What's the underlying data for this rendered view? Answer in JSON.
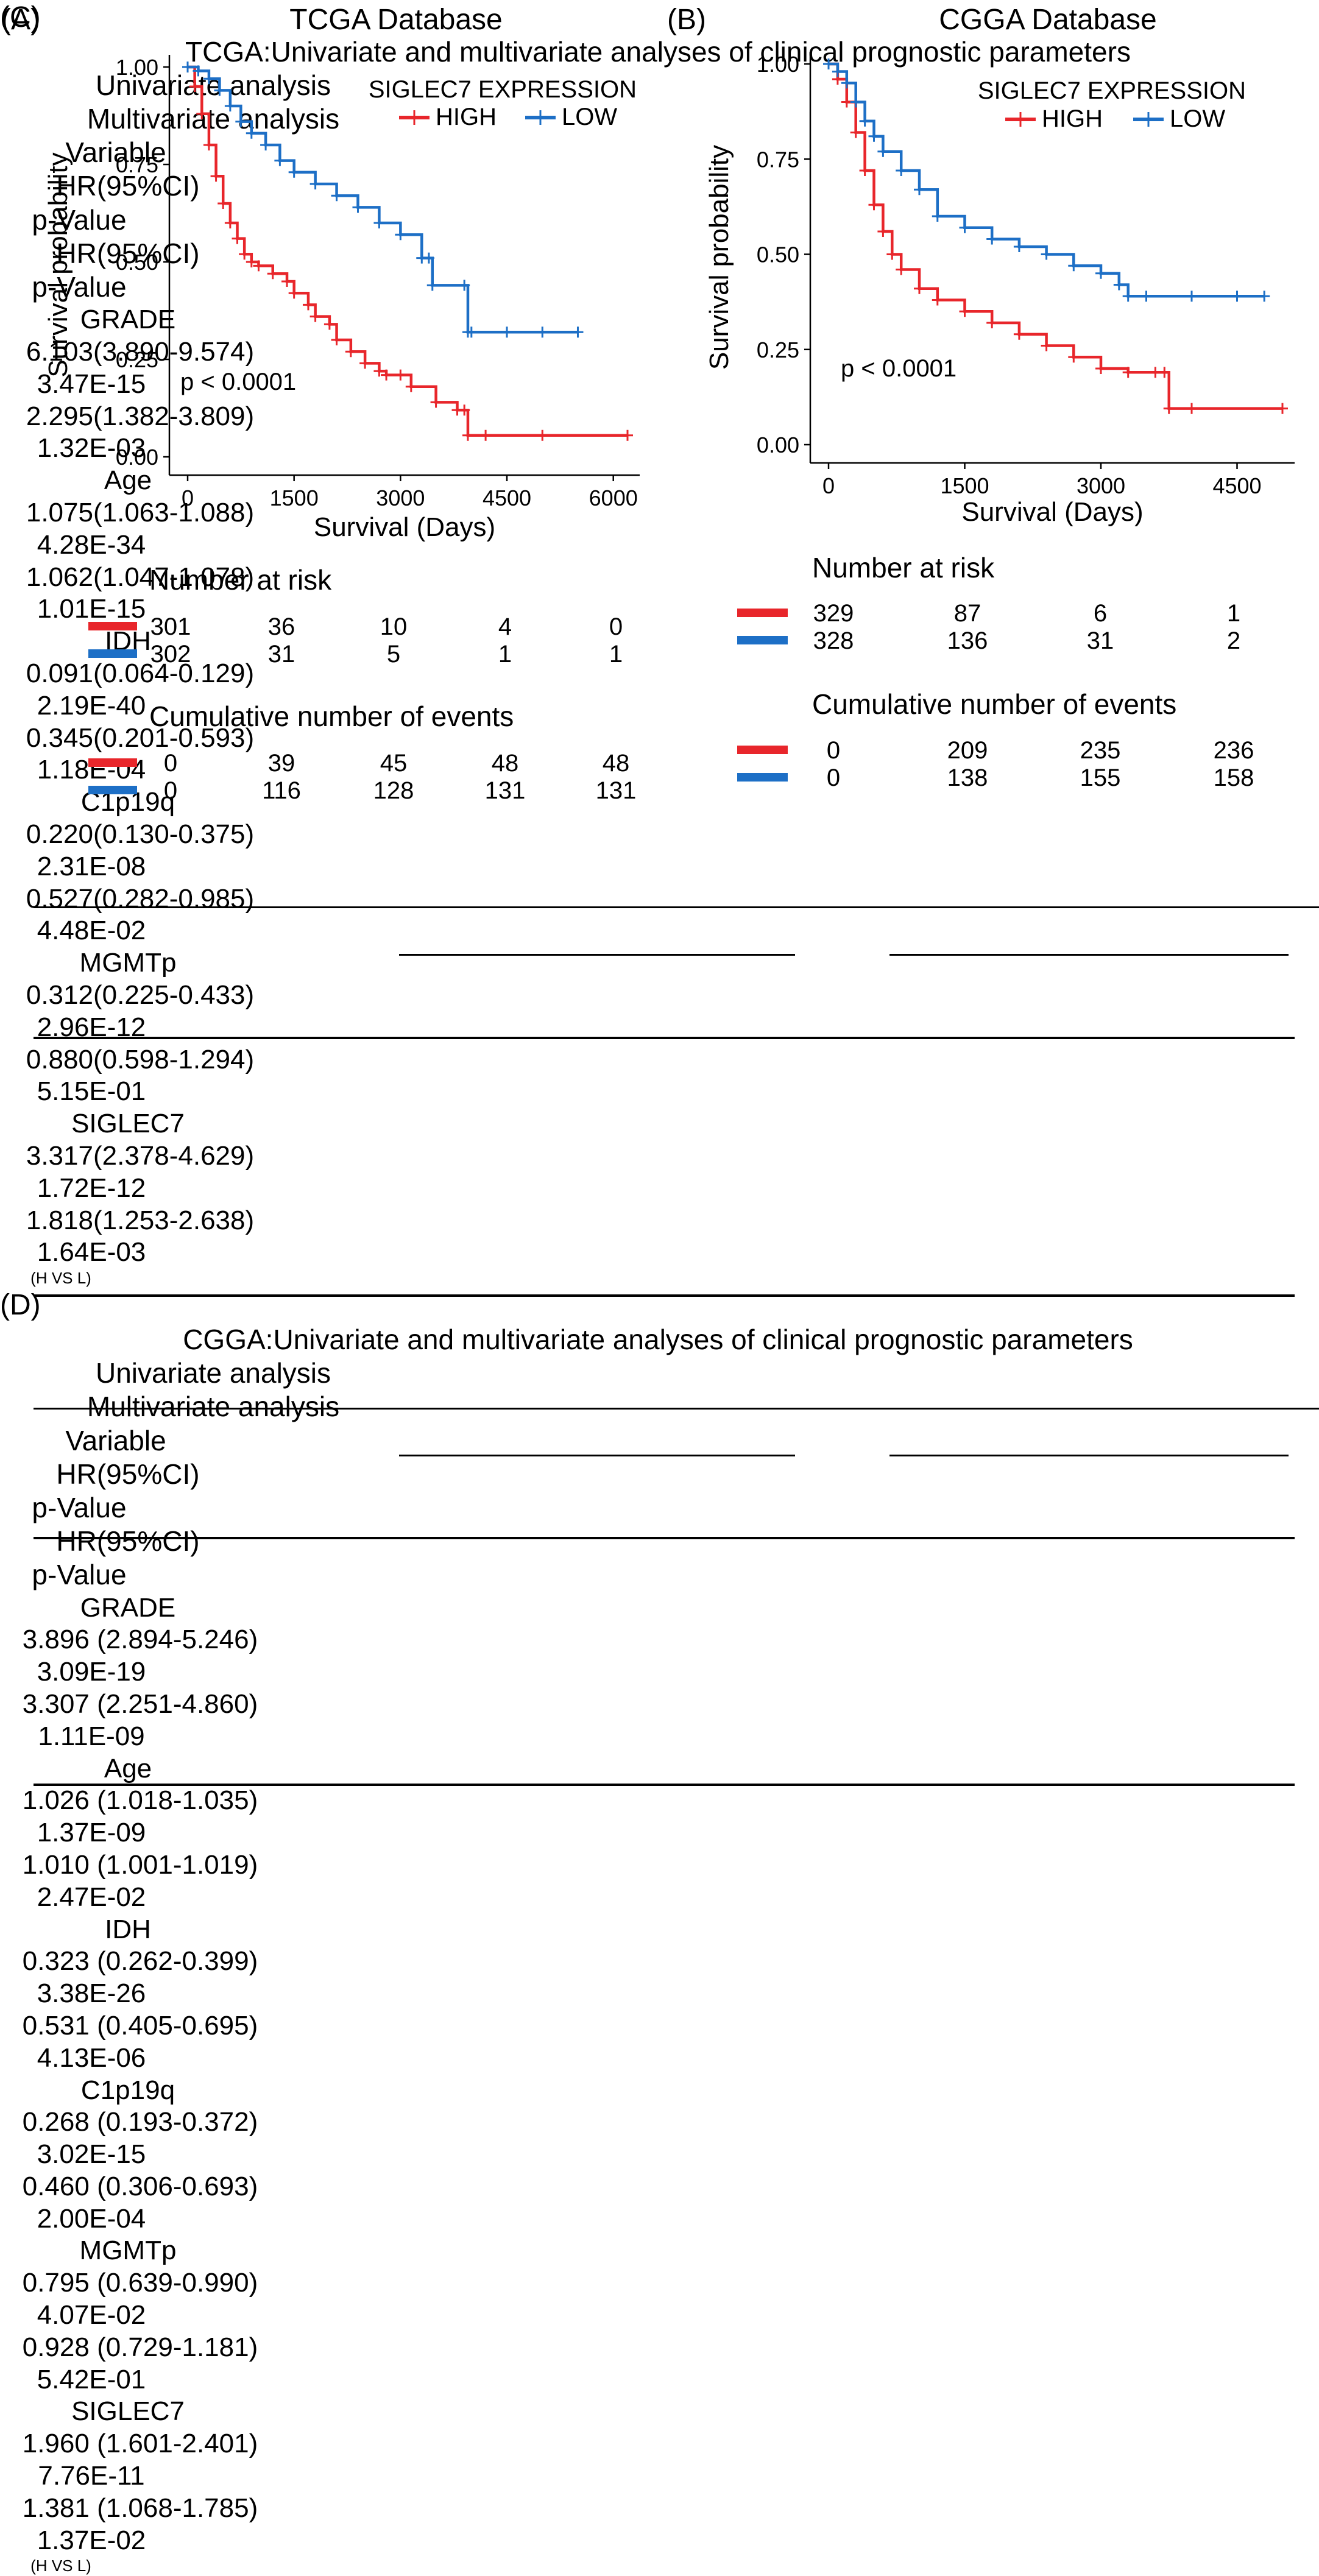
{
  "chart_data": [
    {
      "type": "line",
      "panel_label": "(A)",
      "title": "TCGA Database",
      "xlabel": "Survival (Days)",
      "ylabel": "Survival probability",
      "xlim": [
        0,
        6200
      ],
      "ylim": [
        0,
        1
      ],
      "x_ticks": [
        0,
        1500,
        3000,
        4500,
        6000
      ],
      "x_tick_labels": [
        "0",
        "1500",
        "3000",
        "4500",
        "6000"
      ],
      "y_ticks": [
        0,
        0.25,
        0.5,
        0.75,
        1.0
      ],
      "y_tick_labels": [
        "0.00",
        "0.25",
        "0.50",
        "0.75",
        "1.00"
      ],
      "legend_title": "SIGLEC7 EXPRESSION",
      "legend_position": "top-right",
      "annotation": "p < 0.0001",
      "series": [
        {
          "name": "HIGH",
          "color": "#e8262b",
          "x": [
            0,
            100,
            200,
            300,
            400,
            500,
            600,
            700,
            800,
            900,
            1000,
            1200,
            1400,
            1500,
            1700,
            1800,
            2000,
            2100,
            2300,
            2500,
            2700,
            2800,
            3000,
            3150,
            3500,
            3800,
            3900,
            3950,
            4200,
            5000,
            6200
          ],
          "y": [
            1.0,
            0.95,
            0.88,
            0.8,
            0.72,
            0.65,
            0.6,
            0.56,
            0.52,
            0.5,
            0.49,
            0.47,
            0.45,
            0.42,
            0.39,
            0.36,
            0.34,
            0.3,
            0.27,
            0.24,
            0.22,
            0.21,
            0.21,
            0.18,
            0.14,
            0.12,
            0.12,
            0.055,
            0.055,
            0.055,
            0.055
          ]
        },
        {
          "name": "LOW",
          "color": "#1d6fc6",
          "x": [
            0,
            150,
            300,
            450,
            600,
            750,
            900,
            1100,
            1300,
            1500,
            1800,
            2100,
            2400,
            2700,
            3000,
            3300,
            3400,
            3450,
            3900,
            3950,
            4000,
            4500,
            5000,
            5500
          ],
          "y": [
            1.0,
            0.99,
            0.97,
            0.94,
            0.9,
            0.86,
            0.83,
            0.8,
            0.76,
            0.73,
            0.7,
            0.67,
            0.64,
            0.6,
            0.57,
            0.51,
            0.51,
            0.44,
            0.44,
            0.32,
            0.32,
            0.32,
            0.32,
            0.32
          ]
        }
      ],
      "risk_table_title": "Number at risk",
      "risk_table": [
        {
          "name": "HIGH",
          "values": [
            "301",
            "36",
            "10",
            "4",
            "0"
          ]
        },
        {
          "name": "LOW",
          "values": [
            "302",
            "31",
            "5",
            "1",
            "1"
          ]
        }
      ],
      "events_table_title": "Cumulative number of events",
      "events_table": [
        {
          "name": "HIGH",
          "values": [
            "0",
            "39",
            "45",
            "48",
            "48"
          ]
        },
        {
          "name": "LOW",
          "values": [
            "0",
            "116",
            "128",
            "131",
            "131"
          ]
        }
      ]
    },
    {
      "type": "line",
      "panel_label": "(B)",
      "title": "CGGA Database",
      "xlabel": "Survival (Days)",
      "ylabel": "Survival probability",
      "xlim": [
        0,
        5000
      ],
      "ylim": [
        0,
        1
      ],
      "x_ticks": [
        0,
        1500,
        3000,
        4500
      ],
      "x_tick_labels": [
        "0",
        "1500",
        "3000",
        "4500"
      ],
      "y_ticks": [
        0,
        0.25,
        0.5,
        0.75,
        1.0
      ],
      "y_tick_labels": [
        "0.00",
        "0.25",
        "0.50",
        "0.75",
        "1.00"
      ],
      "legend_title": "SIGLEC7 EXPRESSION",
      "legend_position": "top-right",
      "annotation": "p < 0.0001",
      "series": [
        {
          "name": "HIGH",
          "color": "#e8262b",
          "x": [
            0,
            100,
            200,
            300,
            400,
            500,
            600,
            700,
            800,
            1000,
            1200,
            1500,
            1800,
            2100,
            2400,
            2700,
            3000,
            3300,
            3600,
            3700,
            3750,
            4000,
            5000
          ],
          "y": [
            1.0,
            0.96,
            0.9,
            0.82,
            0.72,
            0.63,
            0.56,
            0.5,
            0.46,
            0.41,
            0.38,
            0.35,
            0.32,
            0.29,
            0.26,
            0.23,
            0.2,
            0.19,
            0.19,
            0.19,
            0.095,
            0.095,
            0.095
          ]
        },
        {
          "name": "LOW",
          "color": "#1d6fc6",
          "x": [
            0,
            100,
            200,
            300,
            400,
            500,
            600,
            800,
            1000,
            1200,
            1500,
            1800,
            2100,
            2400,
            2700,
            3000,
            3200,
            3300,
            3500,
            4000,
            4500,
            4800
          ],
          "y": [
            1.0,
            0.98,
            0.95,
            0.9,
            0.85,
            0.81,
            0.77,
            0.72,
            0.67,
            0.6,
            0.57,
            0.54,
            0.52,
            0.5,
            0.47,
            0.45,
            0.42,
            0.39,
            0.39,
            0.39,
            0.39,
            0.39
          ]
        }
      ],
      "risk_table_title": "Number at risk",
      "risk_table": [
        {
          "name": "HIGH",
          "values": [
            "329",
            "87",
            "6",
            "1"
          ]
        },
        {
          "name": "LOW",
          "values": [
            "328",
            "136",
            "31",
            "2"
          ]
        }
      ],
      "events_table_title": "Cumulative number of events",
      "events_table": [
        {
          "name": "HIGH",
          "values": [
            "0",
            "209",
            "235",
            "236"
          ]
        },
        {
          "name": "LOW",
          "values": [
            "0",
            "138",
            "155",
            "158"
          ]
        }
      ]
    },
    {
      "type": "table",
      "panel_label": "(C)",
      "title": "TCGA:Univariate and multivariate analyses of clinical prognostic parameters",
      "group_headers": [
        "Univariate analysis",
        "Multivariate analysis"
      ],
      "columns": [
        "Variable",
        "HR(95%CI)",
        "p-Value",
        "HR(95%CI)",
        "p-Value"
      ],
      "rows": [
        [
          "GRADE",
          "6.103(3.890-9.574)",
          "3.47E-15",
          "2.295(1.382-3.809)",
          "1.32E-03"
        ],
        [
          "Age",
          "1.075(1.063-1.088)",
          "4.28E-34",
          "1.062(1.047-1.078)",
          "1.01E-15"
        ],
        [
          "IDH",
          "0.091(0.064-0.129)",
          "2.19E-40",
          "0.345(0.201-0.593)",
          "1.18E-04"
        ],
        [
          "C1p19q",
          "0.220(0.130-0.375)",
          "2.31E-08",
          "0.527(0.282-0.985)",
          "4.48E-02"
        ],
        [
          "MGMTp",
          "0.312(0.225-0.433)",
          "2.96E-12",
          "0.880(0.598-1.294)",
          "5.15E-01"
        ],
        [
          "SIGLEC7",
          "3.317(2.378-4.629)",
          "1.72E-12",
          "1.818(1.253-2.638)",
          "1.64E-03"
        ]
      ],
      "footnote": "(H VS L)"
    },
    {
      "type": "table",
      "panel_label": "(D)",
      "title": "CGGA:Univariate and multivariate analyses of clinical prognostic parameters",
      "group_headers": [
        "Univariate analysis",
        "Multivariate analysis"
      ],
      "columns": [
        "Variable",
        "HR(95%CI)",
        "p-Value",
        "HR(95%CI)",
        "p-Value"
      ],
      "rows": [
        [
          "GRADE",
          "3.896 (2.894-5.246)",
          "3.09E-19",
          "3.307 (2.251-4.860)",
          "1.11E-09"
        ],
        [
          "Age",
          "1.026 (1.018-1.035)",
          "1.37E-09",
          "1.010 (1.001-1.019)",
          "2.47E-02"
        ],
        [
          "IDH",
          "0.323 (0.262-0.399)",
          "3.38E-26",
          "0.531 (0.405-0.695)",
          "4.13E-06"
        ],
        [
          "C1p19q",
          "0.268 (0.193-0.372)",
          "3.02E-15",
          "0.460 (0.306-0.693)",
          "2.00E-04"
        ],
        [
          "MGMTp",
          "0.795 (0.639-0.990)",
          "4.07E-02",
          "0.928 (0.729-1.181)",
          "5.42E-01"
        ],
        [
          "SIGLEC7",
          "1.960 (1.601-2.401)",
          "7.76E-11",
          "1.381 (1.068-1.785)",
          "1.37E-02"
        ]
      ],
      "footnote": "(H VS L)"
    }
  ]
}
